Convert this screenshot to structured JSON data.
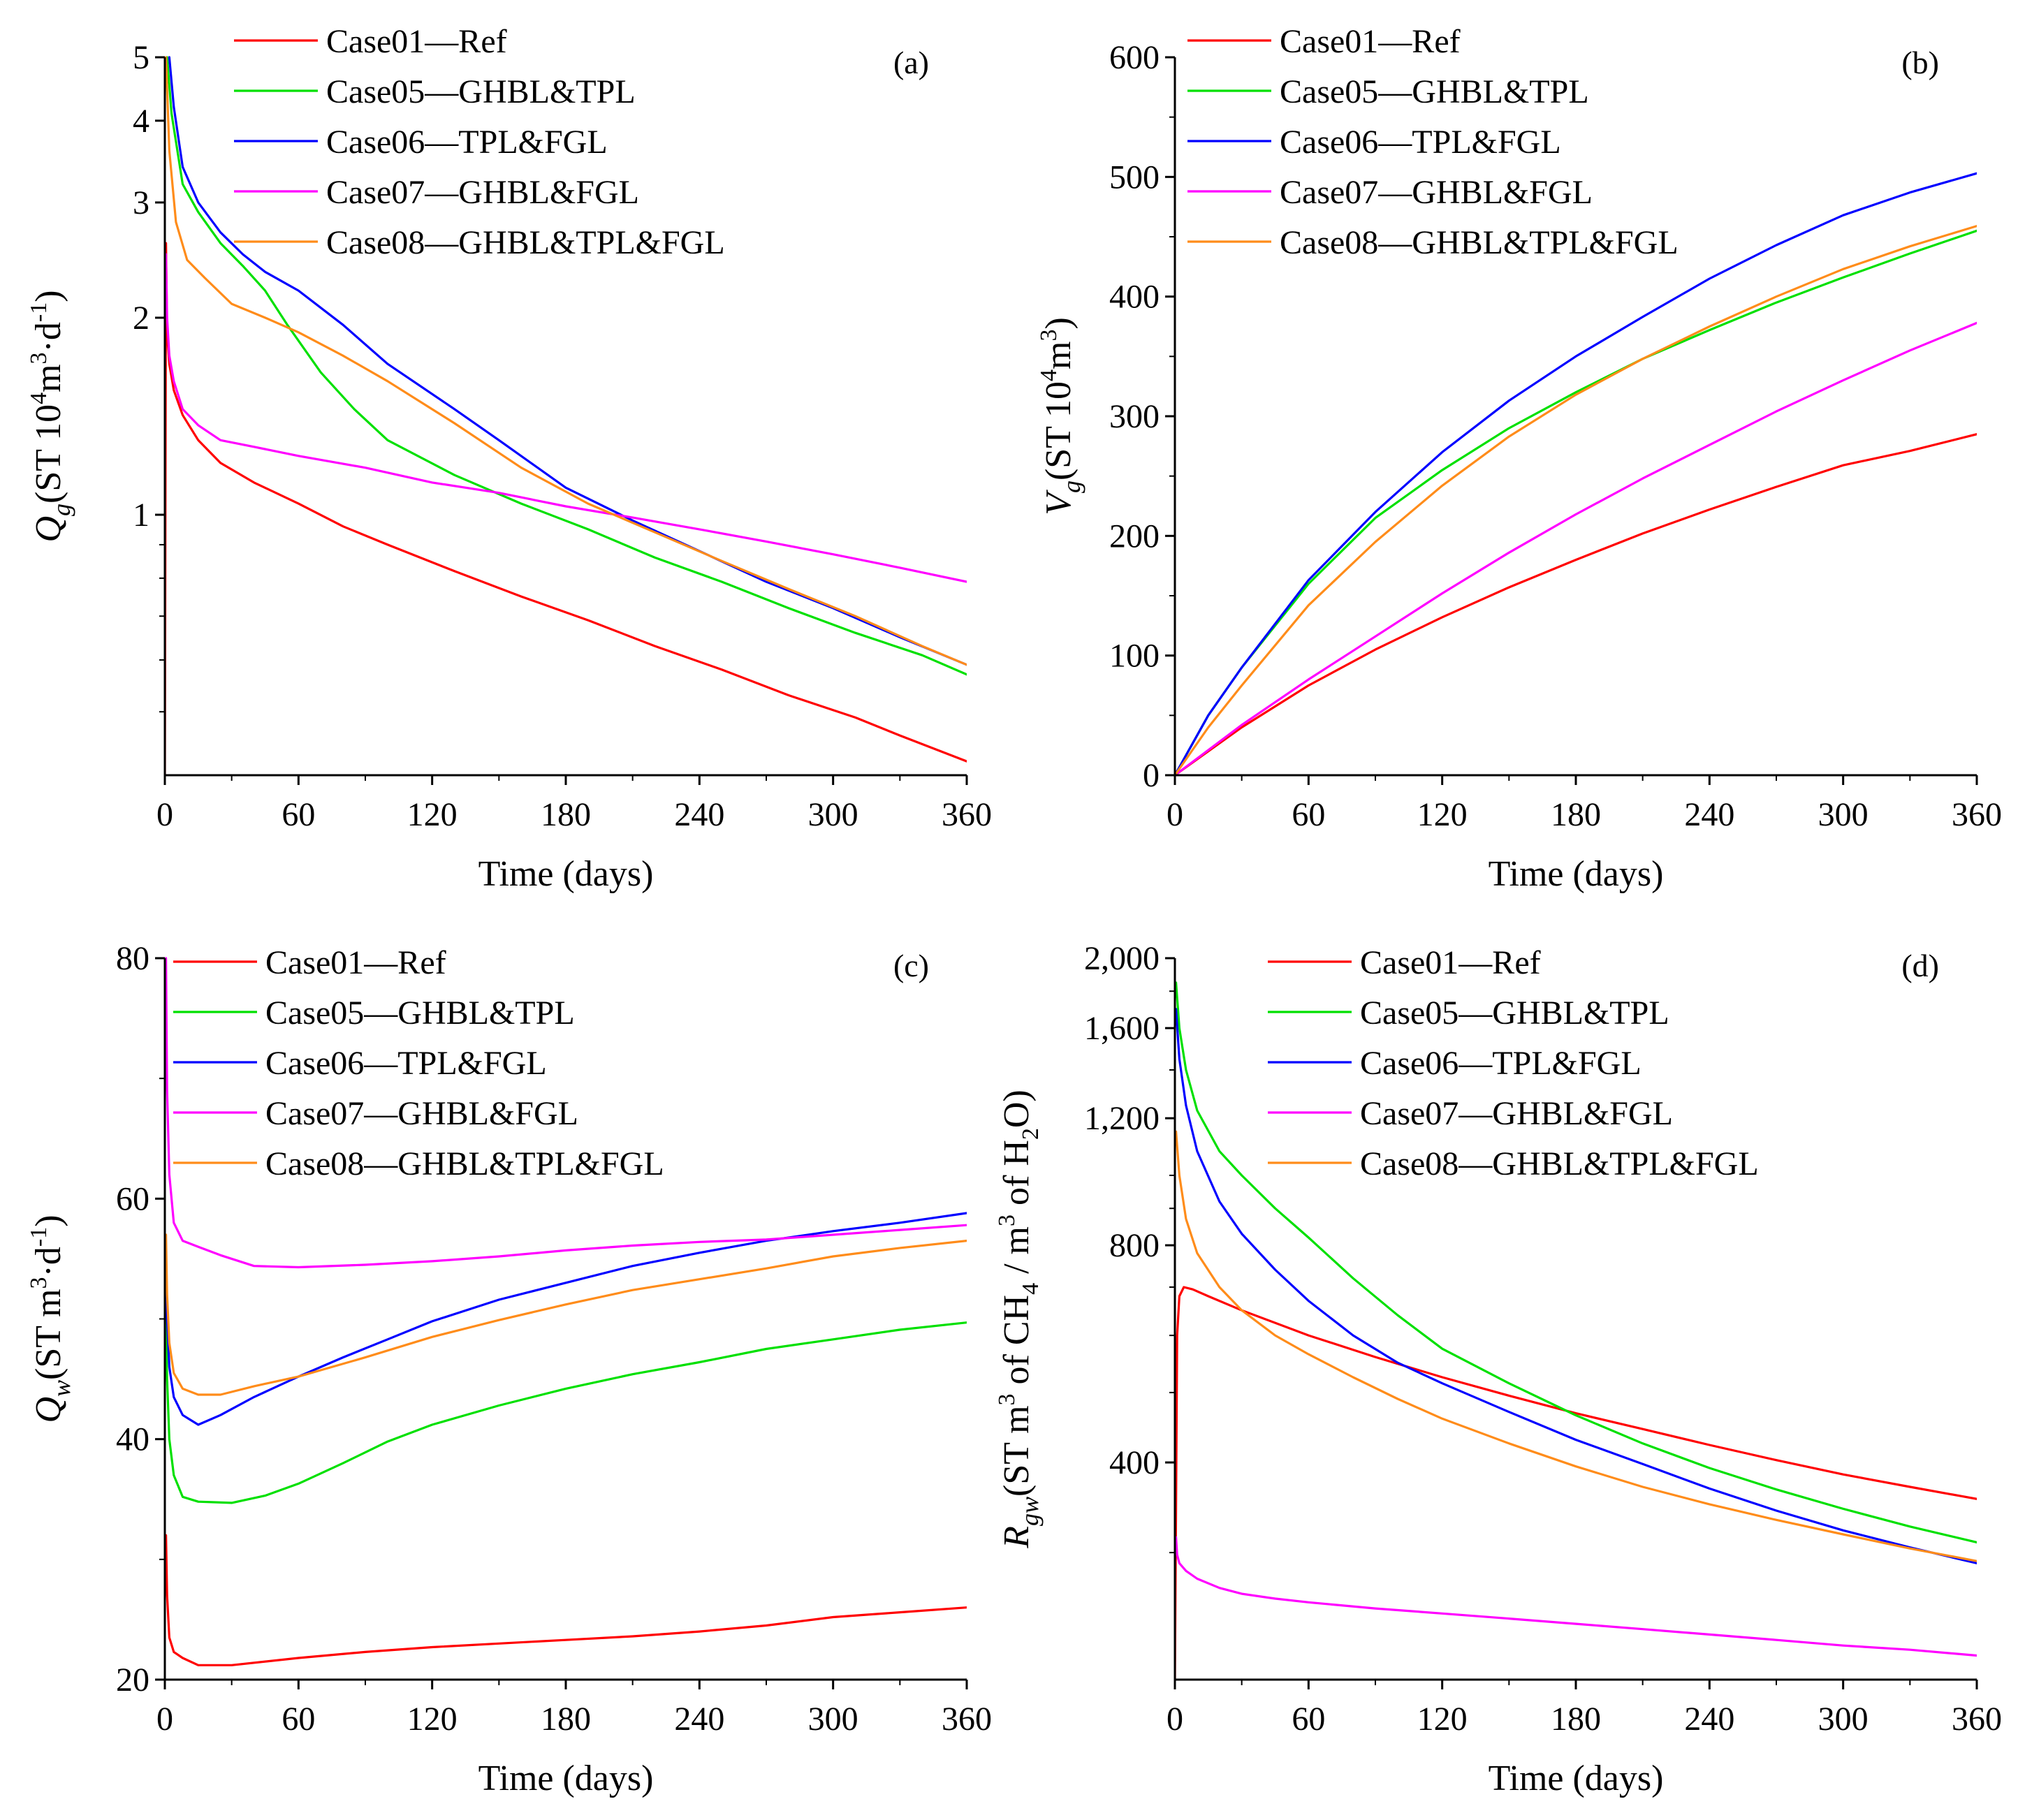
{
  "chart_data": [
    {
      "panel": "(a)",
      "type": "line",
      "yscale": "log",
      "title": "",
      "xlabel": "Time (days)",
      "ylabel": {
        "base": "Q",
        "sub": "g",
        "rest": "(ST 10",
        "sup1": "4",
        "rest2": "m",
        "sup2": "3",
        "rest3": "·d",
        "sup3": "-1",
        "rest4": ")"
      },
      "xlim": [
        0,
        360
      ],
      "ylim": [
        0.4,
        5
      ],
      "xticks": [
        "0",
        "60",
        "120",
        "180",
        "240",
        "300",
        "360"
      ],
      "xtick_values": [
        0,
        60,
        120,
        180,
        240,
        300,
        360
      ],
      "yticks": [
        "1",
        "2",
        "3",
        "4",
        "5"
      ],
      "ytick_values": [
        1,
        2,
        3,
        4,
        5
      ],
      "legend_position": "top-left",
      "series": [
        {
          "name": "Case01—Ref",
          "color": "#ff0000",
          "x": [
            0,
            0.5,
            1,
            2,
            4,
            8,
            15,
            25,
            40,
            60,
            80,
            100,
            130,
            160,
            190,
            220,
            250,
            280,
            310,
            330,
            360
          ],
          "values": [
            0.4,
            2.6,
            1.9,
            1.7,
            1.55,
            1.42,
            1.3,
            1.2,
            1.12,
            1.04,
            0.96,
            0.9,
            0.82,
            0.75,
            0.69,
            0.63,
            0.58,
            0.53,
            0.49,
            0.46,
            0.42
          ]
        },
        {
          "name": "Case05—GHBL&TPL",
          "color": "#00e000",
          "x": [
            1,
            3,
            8,
            15,
            25,
            35,
            45,
            55,
            70,
            85,
            100,
            130,
            160,
            190,
            220,
            250,
            280,
            310,
            340,
            360
          ],
          "values": [
            5,
            4.1,
            3.2,
            2.9,
            2.6,
            2.4,
            2.2,
            1.95,
            1.65,
            1.45,
            1.3,
            1.15,
            1.04,
            0.95,
            0.86,
            0.79,
            0.72,
            0.66,
            0.61,
            0.57
          ]
        },
        {
          "name": "Case06—TPL&FGL",
          "color": "#0000ff",
          "x": [
            2,
            4,
            8,
            15,
            25,
            35,
            45,
            60,
            80,
            100,
            130,
            150,
            180,
            210,
            240,
            270,
            300,
            330,
            360
          ],
          "values": [
            5,
            4.2,
            3.4,
            3.0,
            2.7,
            2.5,
            2.35,
            2.2,
            1.95,
            1.7,
            1.45,
            1.3,
            1.1,
            0.98,
            0.88,
            0.79,
            0.72,
            0.65,
            0.59
          ]
        },
        {
          "name": "Case07—GHBL&FGL",
          "color": "#ff00ff",
          "x": [
            0.5,
            1,
            2,
            4,
            8,
            15,
            25,
            40,
            60,
            90,
            120,
            150,
            180,
            210,
            240,
            270,
            300,
            330,
            360
          ],
          "values": [
            2.5,
            2.0,
            1.75,
            1.6,
            1.45,
            1.37,
            1.3,
            1.27,
            1.23,
            1.18,
            1.12,
            1.08,
            1.03,
            0.99,
            0.95,
            0.91,
            0.87,
            0.83,
            0.79
          ]
        },
        {
          "name": "Case08—GHBL&TPL&FGL",
          "color": "#ff8c1a",
          "x": [
            0.5,
            2,
            5,
            10,
            18,
            30,
            45,
            60,
            80,
            100,
            130,
            160,
            190,
            220,
            250,
            280,
            310,
            340,
            360
          ],
          "values": [
            5,
            3.6,
            2.8,
            2.45,
            2.3,
            2.1,
            2.0,
            1.9,
            1.75,
            1.6,
            1.38,
            1.18,
            1.04,
            0.94,
            0.85,
            0.77,
            0.7,
            0.63,
            0.59
          ]
        }
      ]
    },
    {
      "panel": "(b)",
      "type": "line",
      "yscale": "linear",
      "title": "",
      "xlabel": "Time (days)",
      "ylabel": {
        "base": "V",
        "sub": "g",
        "rest": "(ST 10",
        "sup1": "4",
        "rest2": "m",
        "sup2": "3",
        "rest3": ")"
      },
      "xlim": [
        0,
        360
      ],
      "ylim": [
        0,
        600
      ],
      "xticks": [
        "0",
        "60",
        "120",
        "180",
        "240",
        "300",
        "360"
      ],
      "xtick_values": [
        0,
        60,
        120,
        180,
        240,
        300,
        360
      ],
      "yticks": [
        "0",
        "100",
        "200",
        "300",
        "400",
        "500",
        "600"
      ],
      "ytick_values": [
        0,
        100,
        200,
        300,
        400,
        500,
        600
      ],
      "legend_position": "top-left",
      "series": [
        {
          "name": "Case01—Ref",
          "color": "#ff0000",
          "x": [
            0,
            30,
            60,
            90,
            120,
            150,
            180,
            210,
            240,
            270,
            300,
            330,
            360
          ],
          "values": [
            0,
            40,
            75,
            105,
            132,
            157,
            180,
            202,
            222,
            241,
            259,
            271,
            285
          ]
        },
        {
          "name": "Case05—GHBL&TPL",
          "color": "#00e000",
          "x": [
            0,
            15,
            30,
            60,
            90,
            120,
            150,
            180,
            210,
            240,
            270,
            300,
            330,
            360
          ],
          "values": [
            0,
            50,
            90,
            160,
            215,
            255,
            290,
            320,
            348,
            372,
            395,
            416,
            436,
            455
          ]
        },
        {
          "name": "Case06—TPL&FGL",
          "color": "#0000ff",
          "x": [
            0,
            15,
            30,
            60,
            90,
            120,
            150,
            180,
            210,
            240,
            270,
            300,
            330,
            360
          ],
          "values": [
            0,
            50,
            90,
            163,
            220,
            270,
            313,
            350,
            383,
            415,
            443,
            468,
            487,
            503
          ]
        },
        {
          "name": "Case07—GHBL&FGL",
          "color": "#ff00ff",
          "x": [
            0,
            30,
            60,
            90,
            120,
            150,
            180,
            210,
            240,
            270,
            300,
            330,
            360
          ],
          "values": [
            0,
            42,
            80,
            116,
            152,
            186,
            218,
            248,
            276,
            304,
            330,
            355,
            378
          ]
        },
        {
          "name": "Case08—GHBL&TPL&FGL",
          "color": "#ff8c1a",
          "x": [
            0,
            15,
            30,
            60,
            90,
            120,
            150,
            180,
            210,
            240,
            270,
            300,
            330,
            360
          ],
          "values": [
            0,
            40,
            75,
            142,
            195,
            242,
            283,
            318,
            348,
            375,
            400,
            423,
            442,
            459
          ]
        }
      ]
    },
    {
      "panel": "(c)",
      "type": "line",
      "yscale": "linear",
      "title": "",
      "xlabel": "Time (days)",
      "ylabel": {
        "base": "Q",
        "sub": "w",
        "rest": "(ST m",
        "sup1": "3",
        "rest2": "·d",
        "sup2": "-1",
        "rest3": ")"
      },
      "xlim": [
        0,
        360
      ],
      "ylim": [
        20,
        80
      ],
      "xticks": [
        "0",
        "60",
        "120",
        "180",
        "240",
        "300",
        "360"
      ],
      "xtick_values": [
        0,
        60,
        120,
        180,
        240,
        300,
        360
      ],
      "yticks": [
        "20",
        "40",
        "60",
        "80"
      ],
      "ytick_values": [
        20,
        40,
        60,
        80
      ],
      "legend_position": "top-left",
      "series": [
        {
          "name": "Case01—Ref",
          "color": "#ff0000",
          "x": [
            0.5,
            1,
            2,
            4,
            8,
            15,
            30,
            60,
            90,
            120,
            150,
            180,
            210,
            240,
            270,
            300,
            330,
            360
          ],
          "values": [
            32,
            27,
            23.5,
            22.3,
            21.8,
            21.2,
            21.2,
            21.8,
            22.3,
            22.7,
            23.0,
            23.3,
            23.6,
            24.0,
            24.5,
            25.2,
            25.6,
            26.0
          ]
        },
        {
          "name": "Case05—GHBL&TPL",
          "color": "#00e000",
          "x": [
            0.5,
            1,
            2,
            4,
            8,
            15,
            30,
            45,
            60,
            80,
            100,
            120,
            150,
            180,
            210,
            240,
            270,
            300,
            330,
            360
          ],
          "values": [
            50,
            45,
            40,
            37,
            35.2,
            34.8,
            34.7,
            35.3,
            36.3,
            38,
            39.8,
            41.2,
            42.8,
            44.2,
            45.4,
            46.4,
            47.5,
            48.3,
            49.1,
            49.7
          ]
        },
        {
          "name": "Case06—TPL&FGL",
          "color": "#0000ff",
          "x": [
            0.5,
            1,
            2,
            4,
            8,
            15,
            25,
            40,
            60,
            80,
            100,
            120,
            150,
            180,
            210,
            240,
            270,
            300,
            330,
            360
          ],
          "values": [
            54,
            50,
            46,
            43.5,
            42,
            41.2,
            42.0,
            43.5,
            45.2,
            46.8,
            48.3,
            49.8,
            51.6,
            53.0,
            54.4,
            55.5,
            56.5,
            57.3,
            58.0,
            58.8
          ]
        },
        {
          "name": "Case07—GHBL&FGL",
          "color": "#ff00ff",
          "x": [
            0.5,
            1,
            2,
            4,
            8,
            15,
            25,
            40,
            60,
            90,
            120,
            150,
            180,
            210,
            240,
            270,
            300,
            330,
            360
          ],
          "values": [
            80,
            69,
            62,
            58,
            56.5,
            56,
            55.3,
            54.4,
            54.3,
            54.5,
            54.8,
            55.2,
            55.7,
            56.1,
            56.4,
            56.6,
            57.0,
            57.4,
            57.8
          ]
        },
        {
          "name": "Case08—GHBL&TPL&FGL",
          "color": "#ff8c1a",
          "x": [
            0.5,
            1,
            2,
            4,
            8,
            15,
            25,
            40,
            60,
            90,
            120,
            150,
            180,
            210,
            240,
            270,
            300,
            330,
            360
          ],
          "values": [
            57,
            52,
            48,
            45.5,
            44.2,
            43.7,
            43.7,
            44.4,
            45.2,
            46.8,
            48.5,
            49.9,
            51.2,
            52.4,
            53.3,
            54.2,
            55.2,
            55.9,
            56.5
          ]
        }
      ]
    },
    {
      "panel": "(d)",
      "type": "line",
      "yscale": "log",
      "title": "",
      "xlabel": "Time (days)",
      "ylabel": {
        "base": "R",
        "sub": "gw",
        "rest": "(ST m",
        "sup1": "3",
        "rest2": " of CH",
        "sub2": "4",
        "rest3": " / m",
        "sup3": "3",
        "rest4": " of H",
        "sub3": "2",
        "rest5": "O)"
      },
      "xlim": [
        0,
        360
      ],
      "ylim": [
        200,
        2000
      ],
      "xticks": [
        "0",
        "60",
        "120",
        "180",
        "240",
        "300",
        "360"
      ],
      "xtick_values": [
        0,
        60,
        120,
        180,
        240,
        300,
        360
      ],
      "yticks": [
        "400",
        "800",
        "1,200",
        "1,600",
        "2,000"
      ],
      "ytick_values": [
        400,
        800,
        1200,
        1600,
        2000
      ],
      "legend_position": "top-center",
      "series": [
        {
          "name": "Case01—Ref",
          "color": "#ff0000",
          "x": [
            0,
            1,
            2,
            4,
            8,
            15,
            30,
            60,
            90,
            120,
            150,
            180,
            210,
            240,
            270,
            300,
            330,
            360
          ],
          "values": [
            200,
            600,
            680,
            700,
            695,
            680,
            650,
            600,
            560,
            525,
            495,
            468,
            445,
            423,
            403,
            385,
            370,
            356
          ]
        },
        {
          "name": "Case05—GHBL&TPL",
          "color": "#00e000",
          "x": [
            0.5,
            2,
            5,
            10,
            20,
            30,
            45,
            60,
            80,
            100,
            120,
            150,
            180,
            210,
            240,
            270,
            300,
            330,
            360
          ],
          "values": [
            1850,
            1600,
            1400,
            1230,
            1080,
            1000,
            900,
            820,
            720,
            640,
            575,
            515,
            465,
            425,
            393,
            367,
            345,
            326,
            310
          ]
        },
        {
          "name": "Case06—TPL&FGL",
          "color": "#0000ff",
          "x": [
            0.5,
            2,
            5,
            10,
            20,
            30,
            45,
            60,
            80,
            100,
            120,
            150,
            180,
            210,
            240,
            270,
            300,
            330,
            360
          ],
          "values": [
            1700,
            1450,
            1250,
            1080,
            920,
            830,
            740,
            670,
            600,
            550,
            515,
            470,
            430,
            398,
            368,
            343,
            322,
            305,
            290
          ]
        },
        {
          "name": "Case07—GHBL&FGL",
          "color": "#ff00ff",
          "x": [
            0.5,
            1,
            2,
            5,
            10,
            20,
            30,
            45,
            60,
            90,
            120,
            150,
            180,
            210,
            240,
            270,
            300,
            330,
            360
          ],
          "values": [
            315,
            298,
            290,
            283,
            276,
            268,
            263,
            259,
            256,
            251,
            247,
            243,
            239,
            235,
            231,
            227,
            223,
            220,
            216
          ]
        },
        {
          "name": "Case08—GHBL&TPL&FGL",
          "color": "#ff8c1a",
          "x": [
            0.5,
            2,
            5,
            10,
            20,
            30,
            45,
            60,
            80,
            100,
            120,
            150,
            180,
            210,
            240,
            270,
            300,
            330,
            360
          ],
          "values": [
            1150,
            1000,
            870,
            780,
            700,
            650,
            600,
            565,
            525,
            490,
            460,
            425,
            395,
            370,
            350,
            333,
            318,
            304,
            292
          ]
        }
      ]
    }
  ]
}
